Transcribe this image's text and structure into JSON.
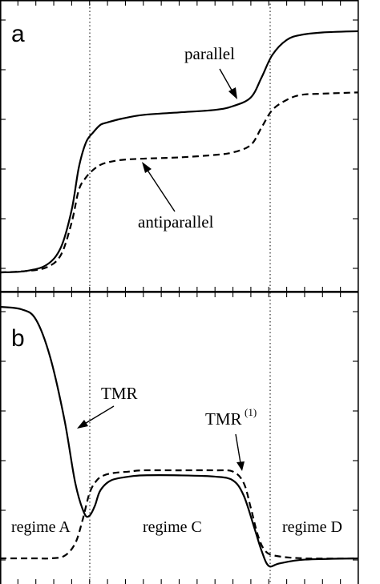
{
  "chart_data": [
    {
      "panel": "a",
      "type": "line",
      "title": "",
      "xlabel": "",
      "ylabel": "",
      "xlim": [
        0,
        1
      ],
      "ylim": [
        0,
        1
      ],
      "grid": false,
      "legend": "none",
      "series": [
        {
          "style": "solid",
          "x": [
            0,
            0.07,
            0.13,
            0.17,
            0.2,
            0.22,
            0.24,
            0.26,
            0.28,
            0.3,
            0.34,
            0.4,
            0.5,
            0.6,
            0.65,
            0.7,
            0.73,
            0.76,
            0.8,
            0.84,
            0.9,
            1.0
          ],
          "y": [
            0.0,
            0.005,
            0.03,
            0.1,
            0.25,
            0.42,
            0.52,
            0.56,
            0.59,
            0.6,
            0.615,
            0.63,
            0.64,
            0.65,
            0.665,
            0.7,
            0.78,
            0.87,
            0.93,
            0.95,
            0.96,
            0.965
          ]
        },
        {
          "style": "dashed",
          "x": [
            0,
            0.07,
            0.13,
            0.17,
            0.2,
            0.22,
            0.24,
            0.26,
            0.28,
            0.3,
            0.34,
            0.4,
            0.5,
            0.6,
            0.65,
            0.7,
            0.73,
            0.76,
            0.8,
            0.84,
            0.9,
            1.0
          ],
          "y": [
            0.0,
            0.005,
            0.02,
            0.07,
            0.2,
            0.33,
            0.38,
            0.41,
            0.43,
            0.44,
            0.45,
            0.455,
            0.46,
            0.47,
            0.48,
            0.51,
            0.58,
            0.65,
            0.69,
            0.71,
            0.715,
            0.72
          ]
        }
      ]
    },
    {
      "panel": "b",
      "type": "line",
      "title": "",
      "xlabel": "",
      "ylabel": "",
      "xlim": [
        0,
        1
      ],
      "ylim": [
        0,
        1
      ],
      "grid": false,
      "legend": "none",
      "series": [
        {
          "style": "solid",
          "x": [
            0,
            0.06,
            0.1,
            0.14,
            0.18,
            0.21,
            0.235,
            0.25,
            0.265,
            0.28,
            0.31,
            0.36,
            0.4,
            0.5,
            0.6,
            0.65,
            0.68,
            0.71,
            0.73,
            0.75,
            0.78,
            0.85,
            1.0
          ],
          "y": [
            1.0,
            0.99,
            0.95,
            0.8,
            0.55,
            0.3,
            0.18,
            0.17,
            0.21,
            0.27,
            0.31,
            0.325,
            0.33,
            0.33,
            0.325,
            0.31,
            0.25,
            0.12,
            0.03,
            -0.03,
            -0.02,
            -0.005,
            0.0
          ]
        },
        {
          "style": "dashed",
          "x": [
            0,
            0.06,
            0.1,
            0.14,
            0.18,
            0.21,
            0.23,
            0.25,
            0.27,
            0.29,
            0.32,
            0.36,
            0.4,
            0.5,
            0.6,
            0.65,
            0.68,
            0.7,
            0.72,
            0.74,
            0.77,
            0.85,
            1.0
          ],
          "y": [
            0.0,
            0.0,
            0.0,
            0.0,
            0.01,
            0.06,
            0.15,
            0.26,
            0.31,
            0.33,
            0.34,
            0.345,
            0.35,
            0.35,
            0.35,
            0.345,
            0.3,
            0.2,
            0.09,
            0.03,
            0.01,
            0.0,
            0.0
          ]
        }
      ]
    }
  ],
  "annotations": {
    "panel_a_letter": "a",
    "panel_b_letter": "b",
    "parallel": "parallel",
    "antiparallel": "antiparallel",
    "tmr": "TMR",
    "tmr1_main": "TMR",
    "tmr1_sup": "(1)",
    "regime_a": "regime A",
    "regime_c": "regime C",
    "regime_d": "regime D"
  }
}
